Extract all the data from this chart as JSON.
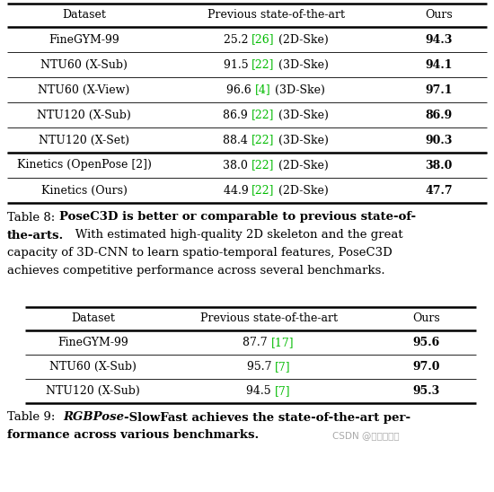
{
  "table1": {
    "header": [
      "Dataset",
      "Previous state-of-the-art",
      "Ours"
    ],
    "rows": [
      {
        "dataset": "FineGYM-99",
        "prev_parts": [
          {
            "text": "25.2 ",
            "color": "#000000"
          },
          {
            "text": "[26]",
            "color": "#00bb00"
          },
          {
            "text": " (2D-Ske)",
            "color": "#000000"
          }
        ],
        "ours": "94.3"
      },
      {
        "dataset": "NTU60 (X-Sub)",
        "prev_parts": [
          {
            "text": "91.5 ",
            "color": "#000000"
          },
          {
            "text": "[22]",
            "color": "#00bb00"
          },
          {
            "text": " (3D-Ske)",
            "color": "#000000"
          }
        ],
        "ours": "94.1"
      },
      {
        "dataset": "NTU60 (X-View)",
        "prev_parts": [
          {
            "text": "96.6 ",
            "color": "#000000"
          },
          {
            "text": "[4]",
            "color": "#00bb00"
          },
          {
            "text": " (3D-Ske)",
            "color": "#000000"
          }
        ],
        "ours": "97.1"
      },
      {
        "dataset": "NTU120 (X-Sub)",
        "prev_parts": [
          {
            "text": "86.9 ",
            "color": "#000000"
          },
          {
            "text": "[22]",
            "color": "#00bb00"
          },
          {
            "text": " (3D-Ske)",
            "color": "#000000"
          }
        ],
        "ours": "86.9"
      },
      {
        "dataset": "NTU120 (X-Set)",
        "prev_parts": [
          {
            "text": "88.4 ",
            "color": "#000000"
          },
          {
            "text": "[22]",
            "color": "#00bb00"
          },
          {
            "text": " (3D-Ske)",
            "color": "#000000"
          }
        ],
        "ours": "90.3"
      },
      {
        "dataset": "Kinetics (OpenPose [2])",
        "prev_parts": [
          {
            "text": "38.0 ",
            "color": "#000000"
          },
          {
            "text": "[22]",
            "color": "#00bb00"
          },
          {
            "text": " (2D-Ske)",
            "color": "#000000"
          }
        ],
        "ours": "38.0",
        "thick_top": true
      },
      {
        "dataset": "Kinetics (Ours)",
        "prev_parts": [
          {
            "text": "44.9 ",
            "color": "#000000"
          },
          {
            "text": "[22]",
            "color": "#00bb00"
          },
          {
            "text": " (2D-Ske)",
            "color": "#000000"
          }
        ],
        "ours": "47.7"
      }
    ]
  },
  "table2": {
    "header": [
      "Dataset",
      "Previous state-of-the-art",
      "Ours"
    ],
    "rows": [
      {
        "dataset": "FineGYM-99",
        "prev_parts": [
          {
            "text": "87.7 ",
            "color": "#000000"
          },
          {
            "text": "[17]",
            "color": "#00bb00"
          }
        ],
        "ours": "95.6"
      },
      {
        "dataset": "NTU60 (X-Sub)",
        "prev_parts": [
          {
            "text": "95.7 ",
            "color": "#000000"
          },
          {
            "text": "[7]",
            "color": "#00bb00"
          }
        ],
        "ours": "97.0"
      },
      {
        "dataset": "NTU120 (X-Sub)",
        "prev_parts": [
          {
            "text": "94.5 ",
            "color": "#000000"
          },
          {
            "text": "[7]",
            "color": "#00bb00"
          }
        ],
        "ours": "95.3"
      }
    ]
  },
  "caption1_lines": [
    [
      {
        "text": "Table 8: ",
        "bold": false,
        "italic": false
      },
      {
        "text": "PoseC3D is better or comparable to previous state-of-",
        "bold": true,
        "italic": false
      }
    ],
    [
      {
        "text": "the-arts.",
        "bold": true,
        "italic": false
      },
      {
        "text": "   With estimated high-quality 2D skeleton and the great",
        "bold": false,
        "italic": false
      }
    ],
    [
      {
        "text": "capacity of 3D-CNN to learn spatio-temporal features, PoseC3D",
        "bold": false,
        "italic": false
      }
    ],
    [
      {
        "text": "achieves competitive performance across several benchmarks.",
        "bold": false,
        "italic": false
      }
    ]
  ],
  "caption2_lines": [
    [
      {
        "text": "Table 9:  ",
        "bold": false,
        "italic": false
      },
      {
        "text": "RGBPose",
        "bold": true,
        "italic": true
      },
      {
        "text": "-SlowFast achieves the state-of-the-art per-",
        "bold": true,
        "italic": false
      }
    ],
    [
      {
        "text": "formance across various benchmarks.",
        "bold": true,
        "italic": false
      }
    ]
  ],
  "watermark": "CSDN @盖盖的博客",
  "bg_color": "#ffffff",
  "black": "#000000",
  "green": "#00bb00",
  "fs_table": 9.0,
  "fs_caption": 9.5,
  "fs_watermark": 7.5
}
